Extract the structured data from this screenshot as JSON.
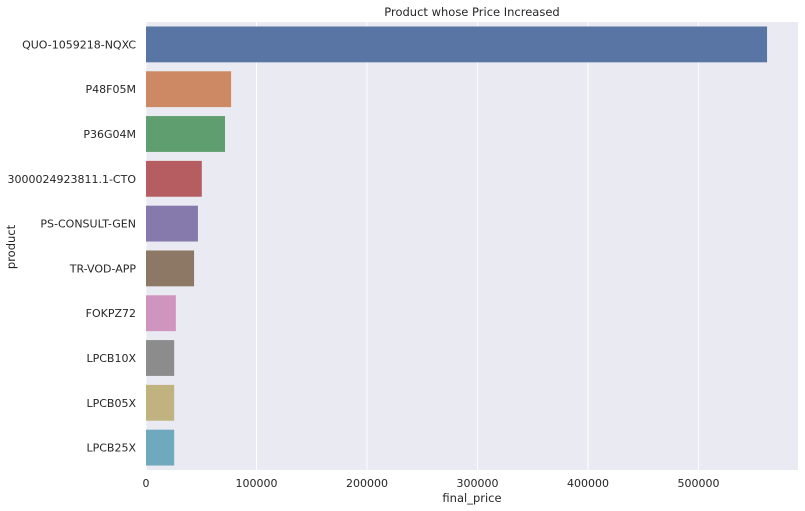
{
  "chart_data": {
    "type": "bar",
    "orientation": "horizontal",
    "title": "Product whose Price Increased",
    "xlabel": "final_price",
    "ylabel": "product",
    "xlim": [
      0,
      590000
    ],
    "x_ticks": [
      0,
      100000,
      200000,
      300000,
      400000,
      500000
    ],
    "x_tick_labels": [
      "0",
      "100000",
      "200000",
      "300000",
      "400000",
      "500000"
    ],
    "grid": true,
    "categories": [
      "QUO-1059218-NQXC",
      "P48F05M",
      "P36G04M",
      "3000024923811.1-CTO",
      "PS-CONSULT-GEN",
      "TR-VOD-APP",
      "FOKPZ72",
      "LPCB10X",
      "LPCB05X",
      "LPCB25X"
    ],
    "values": [
      562000,
      77000,
      71500,
      50500,
      47000,
      43500,
      27000,
      25500,
      25500,
      25500
    ],
    "colors": [
      "#5875a4",
      "#cc8963",
      "#5f9e6e",
      "#b55d60",
      "#857aab",
      "#8d7866",
      "#d095bf",
      "#8c8c8c",
      "#c1b37f",
      "#6ea9bd"
    ],
    "background_color": "#eaeaf2",
    "grid_color": "#ffffff"
  }
}
